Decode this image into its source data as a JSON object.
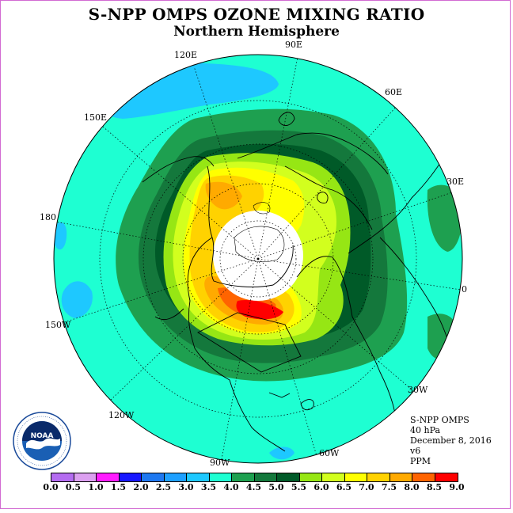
{
  "title": "S-NPP OMPS OZONE MIXING RATIO",
  "subtitle": "Northern Hemisphere",
  "longitude_labels": {
    "lon_90e": "90E",
    "lon_60e": "60E",
    "lon_30e": "30E",
    "lon_0": "0",
    "lon_30w": "30W",
    "lon_60w": "60W",
    "lon_90w": "90W",
    "lon_120w": "120W",
    "lon_150w": "150W",
    "lon_180": "180",
    "lon_150e": "150E",
    "lon_120e": "120E"
  },
  "info": {
    "instrument": "S-NPP OMPS",
    "level": "40 hPa",
    "date": "December 8, 2016",
    "version": "v6",
    "units": "PPM"
  },
  "logo": {
    "text": "NOAA",
    "ring_text": "NATIONAL OCEANIC AND ATMOSPHERIC ADMINISTRATION · U.S. DEPARTMENT OF COMMERCE"
  },
  "colorbar": {
    "ticks": [
      "0.0",
      "0.5",
      "1.0",
      "1.5",
      "2.0",
      "2.5",
      "3.0",
      "3.5",
      "4.0",
      "4.5",
      "5.0",
      "5.5",
      "6.0",
      "6.5",
      "7.0",
      "7.5",
      "8.0",
      "8.5",
      "9.0"
    ],
    "colors": [
      "#b46cf0",
      "#dca0f0",
      "#ff1cff",
      "#1818ff",
      "#1e78f0",
      "#1ea0ff",
      "#1ec8ff",
      "#1effd2",
      "#1ea050",
      "#14783c",
      "#005a28",
      "#96e614",
      "#d2ff1e",
      "#ffff00",
      "#ffd200",
      "#ffaa00",
      "#ff6400",
      "#ff0000",
      "#8c5a3c"
    ]
  },
  "map": {
    "projection": "north-polar-stereographic",
    "no_data_region": "polar night (white disk)",
    "background_value_ppm": "3.5-4.0",
    "peak_value_ppm": "8.0-8.5",
    "peak_location": "Canadian Arctic / Hudson Bay"
  }
}
